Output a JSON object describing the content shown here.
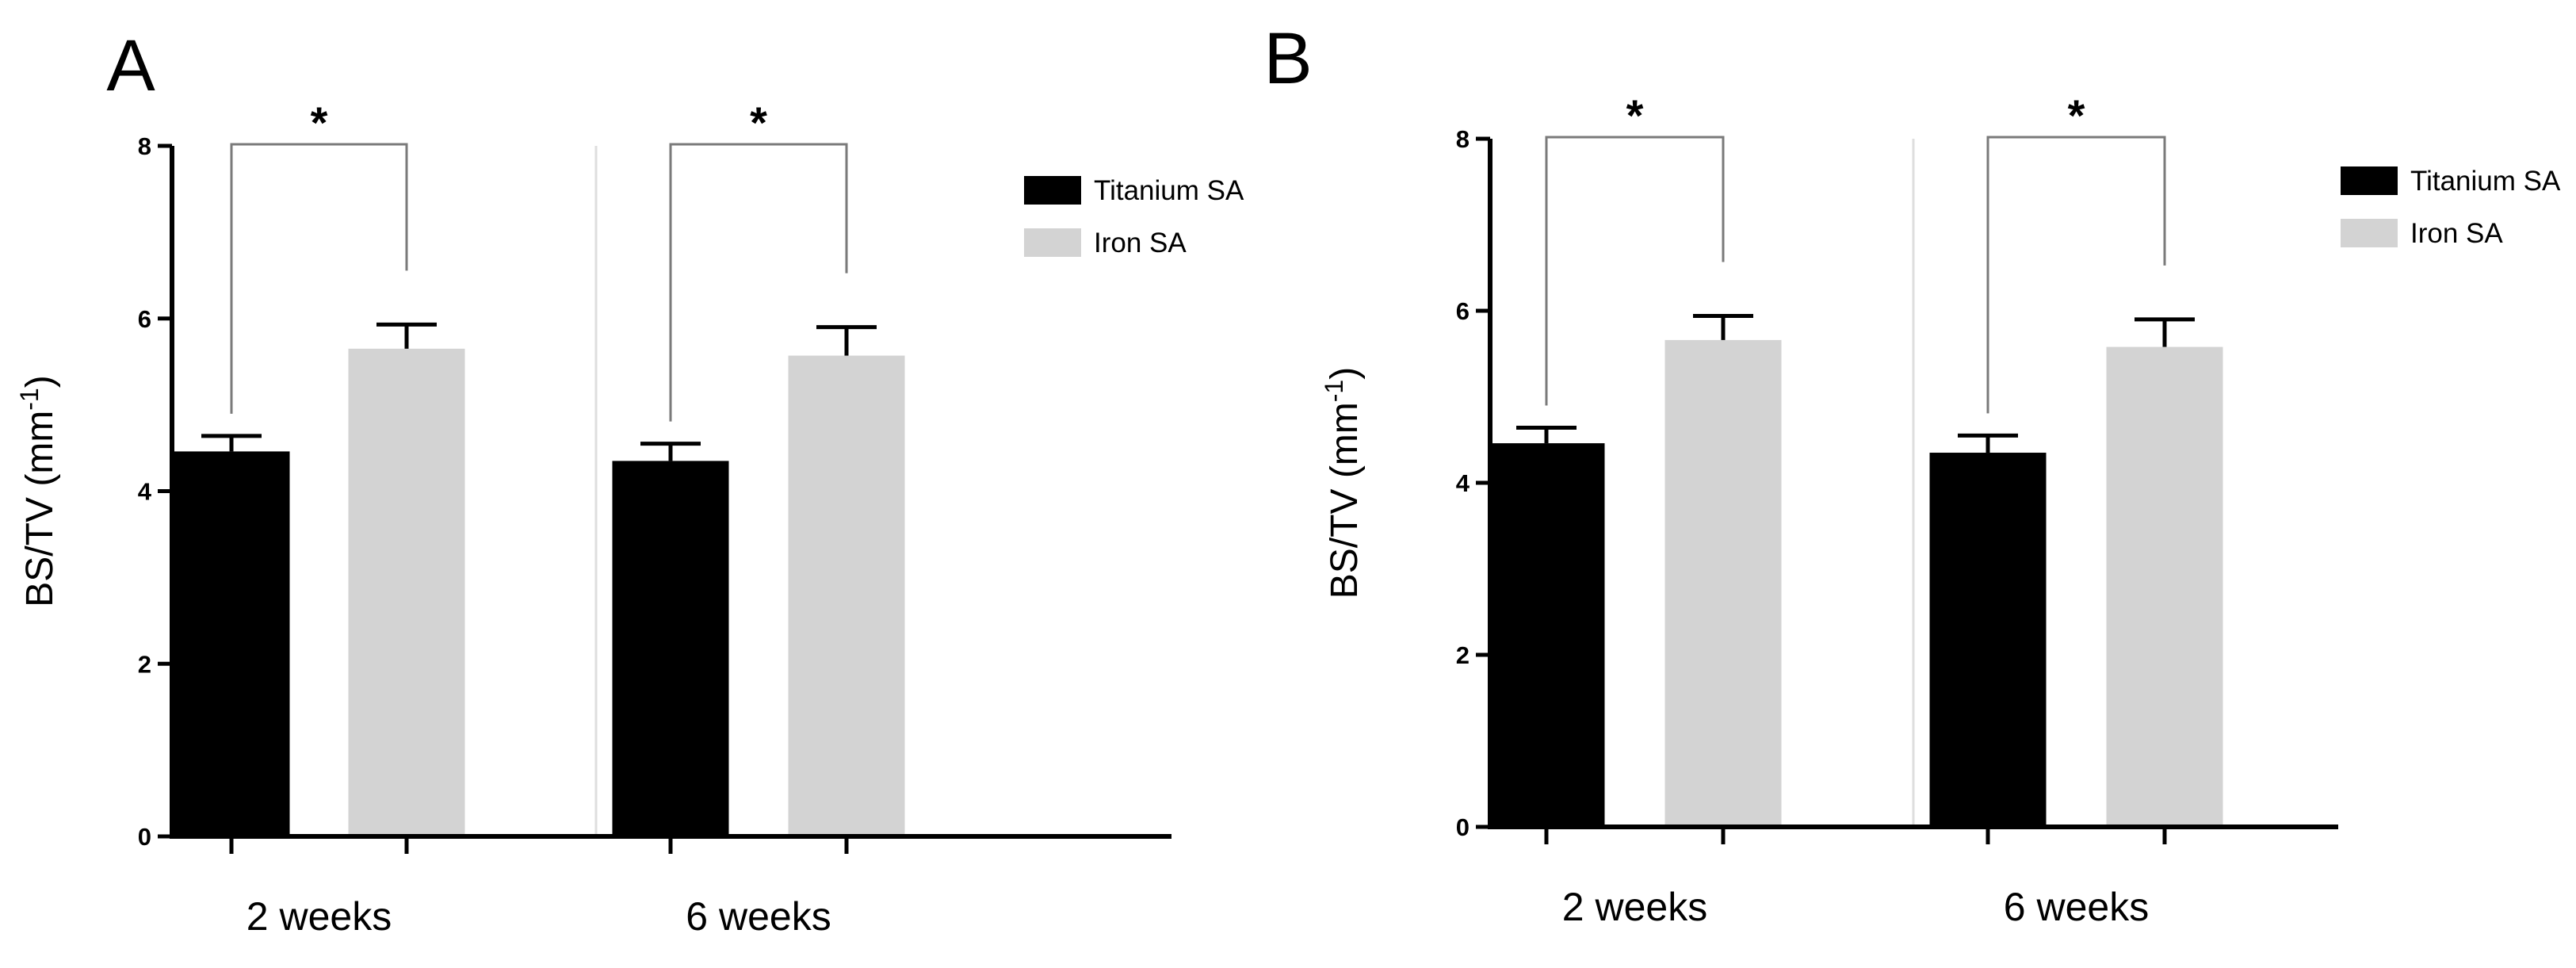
{
  "colors": {
    "titanium": "#000000",
    "iron": "#d3d3d3",
    "axis": "#000000",
    "bracket": "#7a7a7a",
    "divider": "#dedede"
  },
  "chart_data": [
    {
      "panel_label": "A",
      "type": "bar",
      "ylabel": "BS/TV (mm",
      "ylabel_superscript": "-1",
      "ylabel_close": ")",
      "ylim": [
        0,
        8
      ],
      "yticks": [
        "0",
        "2",
        "4",
        "6",
        "8"
      ],
      "categories": [
        "2 weeks",
        "6 weeks"
      ],
      "series": [
        {
          "name": "Titanium SA",
          "values": [
            4.46,
            4.35
          ],
          "errors": [
            0.18,
            0.2
          ]
        },
        {
          "name": "Iron SA",
          "values": [
            5.65,
            5.57
          ],
          "errors": [
            0.28,
            0.33
          ]
        }
      ],
      "significance": [
        "*",
        "*"
      ],
      "legend_position": "top-right",
      "grid": false
    },
    {
      "panel_label": "B",
      "type": "bar",
      "ylabel": "BS/TV (mm",
      "ylabel_superscript": "-1",
      "ylabel_close": ")",
      "ylim": [
        0,
        8
      ],
      "yticks": [
        "0",
        "2",
        "4",
        "6",
        "8"
      ],
      "categories": [
        "2 weeks",
        "6 weeks"
      ],
      "series": [
        {
          "name": "Titanium SA",
          "values": [
            4.46,
            4.35
          ],
          "errors": [
            0.18,
            0.2
          ]
        },
        {
          "name": "Iron SA",
          "values": [
            5.66,
            5.58
          ],
          "errors": [
            0.28,
            0.32
          ]
        }
      ],
      "significance": [
        "*",
        "*"
      ],
      "legend_position": "top-right",
      "grid": false
    }
  ]
}
